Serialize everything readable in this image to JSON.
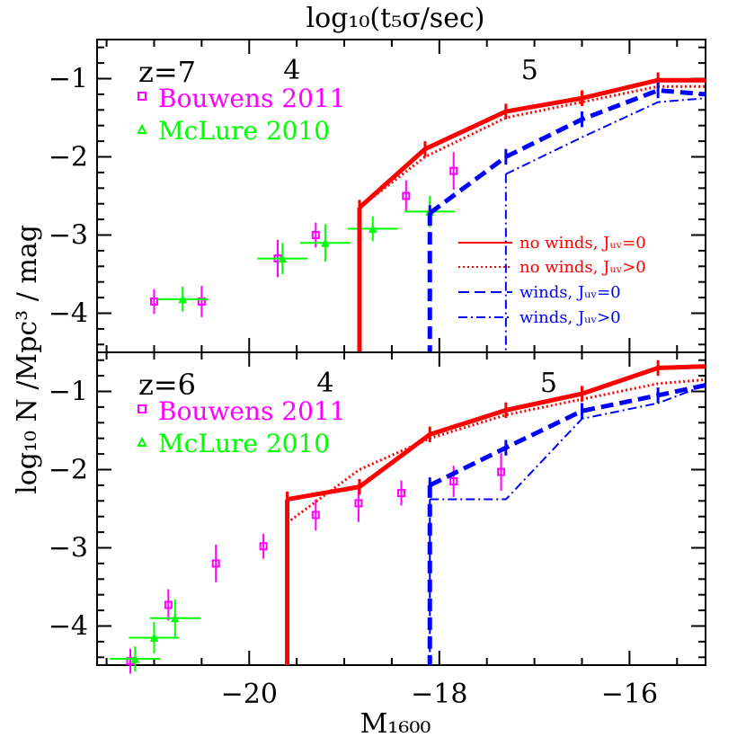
{
  "figure": {
    "top_axis_label": "log₁₀(t₅σ/sec)",
    "x_axis_label": "M₁₆₀₀",
    "y_axis_label": "log₁₀ N /Mpc³ / mag"
  },
  "legend": {
    "no_winds_j0": "no winds, Jᵤᵥ=0",
    "no_winds_jgt0": "no winds, Jᵤᵥ>0",
    "winds_j0": "winds, Jᵤᵥ=0",
    "winds_jgt0": "winds, Jᵤᵥ>0"
  },
  "colors": {
    "no_winds": "#ff0000",
    "winds": "#0000ff",
    "bouwens": "#ff00ff",
    "mclure": "#00ff00"
  },
  "chart_data": [
    {
      "type": "line",
      "panel": "top",
      "label": "z=7",
      "xlim": [
        -21.6,
        -15.2
      ],
      "ylim": [
        -4.5,
        -0.5
      ],
      "x_ticks": [
        -20,
        -18,
        -16
      ],
      "y_ticks": [
        -1,
        -2,
        -3,
        -4
      ],
      "top_ticks": [
        {
          "label": "4",
          "x": -19.55
        },
        {
          "label": "5",
          "x": -17.05
        }
      ],
      "legend_sources": [
        "Bouwens 2011",
        "McLure 2010"
      ],
      "series": [
        {
          "name": "no winds, J_UV=0",
          "style": "solid",
          "x": [
            -18.84,
            -18.15,
            -17.3,
            -16.5,
            -15.7,
            -15.2
          ],
          "y": [
            -2.65,
            -1.9,
            -1.42,
            -1.25,
            -1.02,
            -1.02
          ]
        },
        {
          "name": "no winds, J_UV>0",
          "style": "dotted",
          "x": [
            -18.84,
            -18.15,
            -17.3,
            -16.5,
            -15.7,
            -15.2
          ],
          "y": [
            -2.65,
            -2.0,
            -1.5,
            -1.3,
            -1.1,
            -1.1
          ]
        },
        {
          "name": "winds, J_UV=0",
          "style": "dashed",
          "x": [
            -18.1,
            -17.3,
            -16.5,
            -15.7,
            -15.2
          ],
          "y": [
            -2.72,
            -2.0,
            -1.52,
            -1.15,
            -1.2
          ]
        },
        {
          "name": "winds, J_UV>0",
          "style": "dashdot",
          "x": [
            -17.3,
            -16.5,
            -15.7,
            -15.2
          ],
          "y": [
            -2.22,
            -1.75,
            -1.3,
            -1.25
          ]
        }
      ],
      "observations": [
        {
          "name": "Bouwens 2011",
          "x": [
            -21.0,
            -20.5,
            -19.7,
            -19.3,
            -18.35,
            -17.85
          ],
          "y": [
            -3.85,
            -3.85,
            -3.3,
            -3.0,
            -2.5,
            -2.18
          ]
        },
        {
          "name": "McLure 2010",
          "x": [
            -20.7,
            -19.65,
            -19.2,
            -18.7,
            -18.1
          ],
          "y": [
            -3.82,
            -3.3,
            -3.1,
            -2.92,
            -2.7
          ]
        }
      ]
    },
    {
      "type": "line",
      "panel": "bottom",
      "label": "z=6",
      "xlim": [
        -21.6,
        -15.2
      ],
      "ylim": [
        -4.5,
        -0.5
      ],
      "x_ticks": [
        -20,
        -18,
        -16
      ],
      "y_ticks": [
        -1,
        -2,
        -3,
        -4
      ],
      "top_ticks": [
        {
          "label": "4",
          "x": -19.2
        },
        {
          "label": "5",
          "x": -16.85
        }
      ],
      "legend_sources": [
        "Bouwens 2011",
        "McLure 2010"
      ],
      "series": [
        {
          "name": "no winds, J_UV=0",
          "style": "solid",
          "x": [
            -19.6,
            -18.84,
            -18.1,
            -17.3,
            -16.5,
            -15.7,
            -15.2
          ],
          "y": [
            -2.38,
            -2.22,
            -1.55,
            -1.24,
            -1.03,
            -0.7,
            -0.68
          ]
        },
        {
          "name": "no winds, J_UV>0",
          "style": "dotted",
          "x": [
            -19.6,
            -18.84,
            -18.1,
            -17.3,
            -16.5,
            -15.7,
            -15.2
          ],
          "y": [
            -2.68,
            -2.0,
            -1.6,
            -1.3,
            -1.1,
            -0.9,
            -0.85
          ]
        },
        {
          "name": "winds, J_UV=0",
          "style": "dashed",
          "x": [
            -18.1,
            -17.3,
            -16.5,
            -15.7,
            -15.2
          ],
          "y": [
            -2.2,
            -1.72,
            -1.25,
            -1.05,
            -0.92
          ]
        },
        {
          "name": "winds, J_UV>0",
          "style": "dashdot",
          "x": [
            -18.1,
            -17.3,
            -16.5,
            -15.7,
            -15.2
          ],
          "y": [
            -2.38,
            -2.38,
            -1.35,
            -1.15,
            -0.92
          ]
        }
      ],
      "observations": [
        {
          "name": "Bouwens 2011",
          "x": [
            -21.25,
            -20.85,
            -20.35,
            -19.85,
            -19.3,
            -18.85,
            -18.4,
            -17.85,
            -17.35
          ],
          "y": [
            -4.45,
            -3.73,
            -3.2,
            -2.98,
            -2.58,
            -2.43,
            -2.3,
            -2.15,
            -2.03
          ]
        },
        {
          "name": "McLure 2010",
          "x": [
            -21.2,
            -21.0,
            -20.78
          ],
          "y": [
            -4.42,
            -4.15,
            -3.9
          ]
        }
      ]
    }
  ]
}
